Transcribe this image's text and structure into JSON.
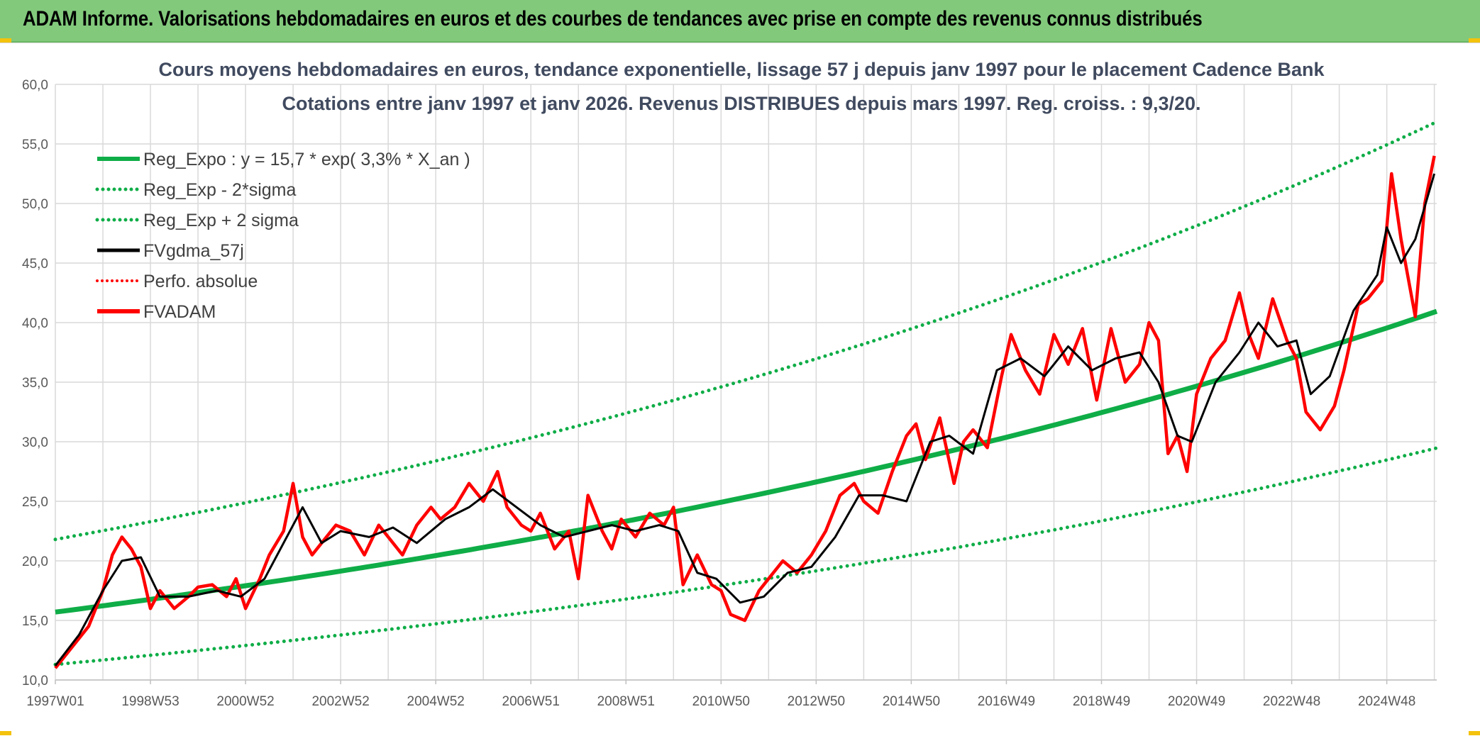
{
  "header": {
    "title": "ADAM Informe. Valorisations hebdomadaires en euros et des courbes de tendances avec prise en compte des revenus connus distribués"
  },
  "colors": {
    "banner": "#82c97c",
    "green": "#0fad47",
    "red": "#ff0000",
    "black": "#000000",
    "grid": "#d9d9d9"
  },
  "chart_data": {
    "type": "line",
    "title_line1": "Cours moyens hebdomadaires en euros, tendance exponentielle, lissage 57 j depuis janv 1997 pour le placement Cadence Bank",
    "title_line2": "Cotations entre janv 1997 et janv 2026. Revenus DISTRIBUES depuis mars 1997. Reg. croiss. : 9,3/20.",
    "xlabel": "",
    "ylabel": "",
    "ylim": [
      10,
      60
    ],
    "ytick_values": [
      10,
      15,
      20,
      25,
      30,
      35,
      40,
      45,
      50,
      55,
      60
    ],
    "yticks": [
      "10,0",
      "15,0",
      "20,0",
      "25,0",
      "30,0",
      "35,0",
      "40,0",
      "45,0",
      "50,0",
      "55,0",
      "60,0"
    ],
    "xlim": [
      1997.0,
      2026.05
    ],
    "xtick_positions": [
      1997.0,
      1999.0,
      2001.0,
      2003.0,
      2005.0,
      2007.0,
      2009.0,
      2011.0,
      2013.0,
      2015.0,
      2017.0,
      2019.0,
      2021.0,
      2023.0,
      2025.0
    ],
    "xticks": [
      "1997W01",
      "1998W53",
      "2000W52",
      "2002W52",
      "2004W52",
      "2006W51",
      "2008W51",
      "2010W50",
      "2012W50",
      "2014W50",
      "2016W49",
      "2018W49",
      "2020W49",
      "2022W48",
      "2024W48"
    ],
    "grid": true,
    "legend_position": "top-left",
    "legend": [
      {
        "label": "Reg_Expo : y = 15,7 * exp( 3,3% *  X_an )",
        "style": "solid-green"
      },
      {
        "label": "Reg_Exp - 2*sigma",
        "style": "dotted-green"
      },
      {
        "label": "Reg_Exp + 2 sigma",
        "style": "dotted-green"
      },
      {
        "label": "FVgdma_57j",
        "style": "solid-black"
      },
      {
        "label": "Perfo. absolue",
        "style": "dotted-red"
      },
      {
        "label": "FVADAM",
        "style": "solid-red"
      }
    ],
    "regression": {
      "a": 15.7,
      "rate": 0.033,
      "lower_a": 11.3,
      "upper_a": 21.8,
      "x_start": 1997.0,
      "x_end": 2026.05
    },
    "series": [
      {
        "name": "FVADAM",
        "x": [
          1997.0,
          1997.3,
          1997.7,
          1998.0,
          1998.2,
          1998.4,
          1998.6,
          1998.8,
          1999.0,
          1999.2,
          1999.5,
          1999.8,
          2000.0,
          2000.3,
          2000.6,
          2000.8,
          2001.0,
          2001.3,
          2001.5,
          2001.8,
          2002.0,
          2002.2,
          2002.4,
          2002.6,
          2002.9,
          2003.2,
          2003.5,
          2003.8,
          2004.0,
          2004.3,
          2004.6,
          2004.9,
          2005.1,
          2005.4,
          2005.7,
          2006.0,
          2006.3,
          2006.5,
          2006.8,
          2007.0,
          2007.2,
          2007.5,
          2007.8,
          2008.0,
          2008.2,
          2008.5,
          2008.7,
          2008.9,
          2009.2,
          2009.5,
          2009.8,
          2010.0,
          2010.2,
          2010.5,
          2010.8,
          2011.0,
          2011.2,
          2011.5,
          2011.8,
          2012.0,
          2012.3,
          2012.6,
          2012.9,
          2013.2,
          2013.5,
          2013.8,
          2014.0,
          2014.3,
          2014.6,
          2014.9,
          2015.1,
          2015.3,
          2015.6,
          2015.9,
          2016.1,
          2016.3,
          2016.6,
          2016.9,
          2017.1,
          2017.4,
          2017.7,
          2018.0,
          2018.3,
          2018.6,
          2018.9,
          2019.2,
          2019.5,
          2019.8,
          2020.0,
          2020.2,
          2020.4,
          2020.6,
          2020.8,
          2021.0,
          2021.3,
          2021.6,
          2021.9,
          2022.1,
          2022.3,
          2022.6,
          2022.9,
          2023.1,
          2023.3,
          2023.6,
          2023.9,
          2024.1,
          2024.4,
          2024.6,
          2024.9,
          2025.1,
          2025.3,
          2025.6,
          2025.8,
          2026.0
        ],
        "values": [
          11.0,
          12.5,
          14.5,
          17.5,
          20.5,
          22.0,
          21.0,
          19.5,
          16.0,
          17.5,
          16.0,
          17.0,
          17.8,
          18.0,
          17.0,
          18.5,
          16.0,
          18.5,
          20.5,
          22.5,
          26.5,
          22.0,
          20.5,
          21.5,
          23.0,
          22.5,
          20.5,
          23.0,
          22.0,
          20.5,
          23.0,
          24.5,
          23.5,
          24.5,
          26.5,
          25.0,
          27.5,
          24.5,
          23.0,
          22.5,
          24.0,
          21.0,
          22.5,
          18.5,
          25.5,
          22.5,
          21.0,
          23.5,
          22.0,
          24.0,
          23.0,
          24.5,
          18.0,
          20.5,
          18.0,
          17.5,
          15.5,
          15.0,
          17.5,
          18.5,
          20.0,
          19.0,
          20.5,
          22.5,
          25.5,
          26.5,
          25.0,
          24.0,
          27.5,
          30.5,
          31.5,
          28.5,
          32.0,
          26.5,
          30.0,
          31.0,
          29.5,
          35.5,
          39.0,
          36.0,
          34.0,
          39.0,
          36.5,
          39.5,
          33.5,
          39.5,
          35.0,
          36.5,
          40.0,
          38.5,
          29.0,
          30.5,
          27.5,
          34.0,
          37.0,
          38.5,
          42.5,
          39.0,
          37.0,
          42.0,
          38.5,
          37.0,
          32.5,
          31.0,
          33.0,
          36.0,
          41.5,
          42.0,
          43.5,
          52.5,
          47.0,
          40.5,
          50.0,
          54.0
        ]
      },
      {
        "name": "FVgdma_57j",
        "x": [
          1997.0,
          1997.5,
          1998.0,
          1998.4,
          1998.8,
          1999.2,
          1999.8,
          2000.4,
          2000.9,
          2001.4,
          2001.8,
          2002.2,
          2002.6,
          2003.0,
          2003.6,
          2004.1,
          2004.6,
          2005.2,
          2005.7,
          2006.2,
          2006.7,
          2007.2,
          2007.7,
          2008.2,
          2008.7,
          2009.2,
          2009.7,
          2010.1,
          2010.5,
          2010.9,
          2011.4,
          2011.9,
          2012.4,
          2012.9,
          2013.4,
          2013.9,
          2014.4,
          2014.9,
          2015.4,
          2015.8,
          2016.3,
          2016.8,
          2017.3,
          2017.8,
          2018.3,
          2018.8,
          2019.3,
          2019.8,
          2020.2,
          2020.6,
          2020.9,
          2021.4,
          2021.9,
          2022.3,
          2022.7,
          2023.1,
          2023.4,
          2023.8,
          2024.3,
          2024.8,
          2025.0,
          2025.3,
          2025.6,
          2026.0
        ],
        "values": [
          11.2,
          13.8,
          17.5,
          20.0,
          20.3,
          17.0,
          17.0,
          17.5,
          17.0,
          18.5,
          21.5,
          24.5,
          21.5,
          22.5,
          22.0,
          22.8,
          21.5,
          23.5,
          24.5,
          26.0,
          24.5,
          23.0,
          22.0,
          22.5,
          23.0,
          22.5,
          23.0,
          22.5,
          19.0,
          18.5,
          16.5,
          17.0,
          19.0,
          19.5,
          22.0,
          25.5,
          25.5,
          25.0,
          30.0,
          30.5,
          29.0,
          36.0,
          37.0,
          35.5,
          38.0,
          36.0,
          37.0,
          37.5,
          35.0,
          30.5,
          30.0,
          35.0,
          37.5,
          40.0,
          38.0,
          38.5,
          34.0,
          35.5,
          41.0,
          44.0,
          48.0,
          45.0,
          47.0,
          52.5
        ]
      }
    ]
  }
}
